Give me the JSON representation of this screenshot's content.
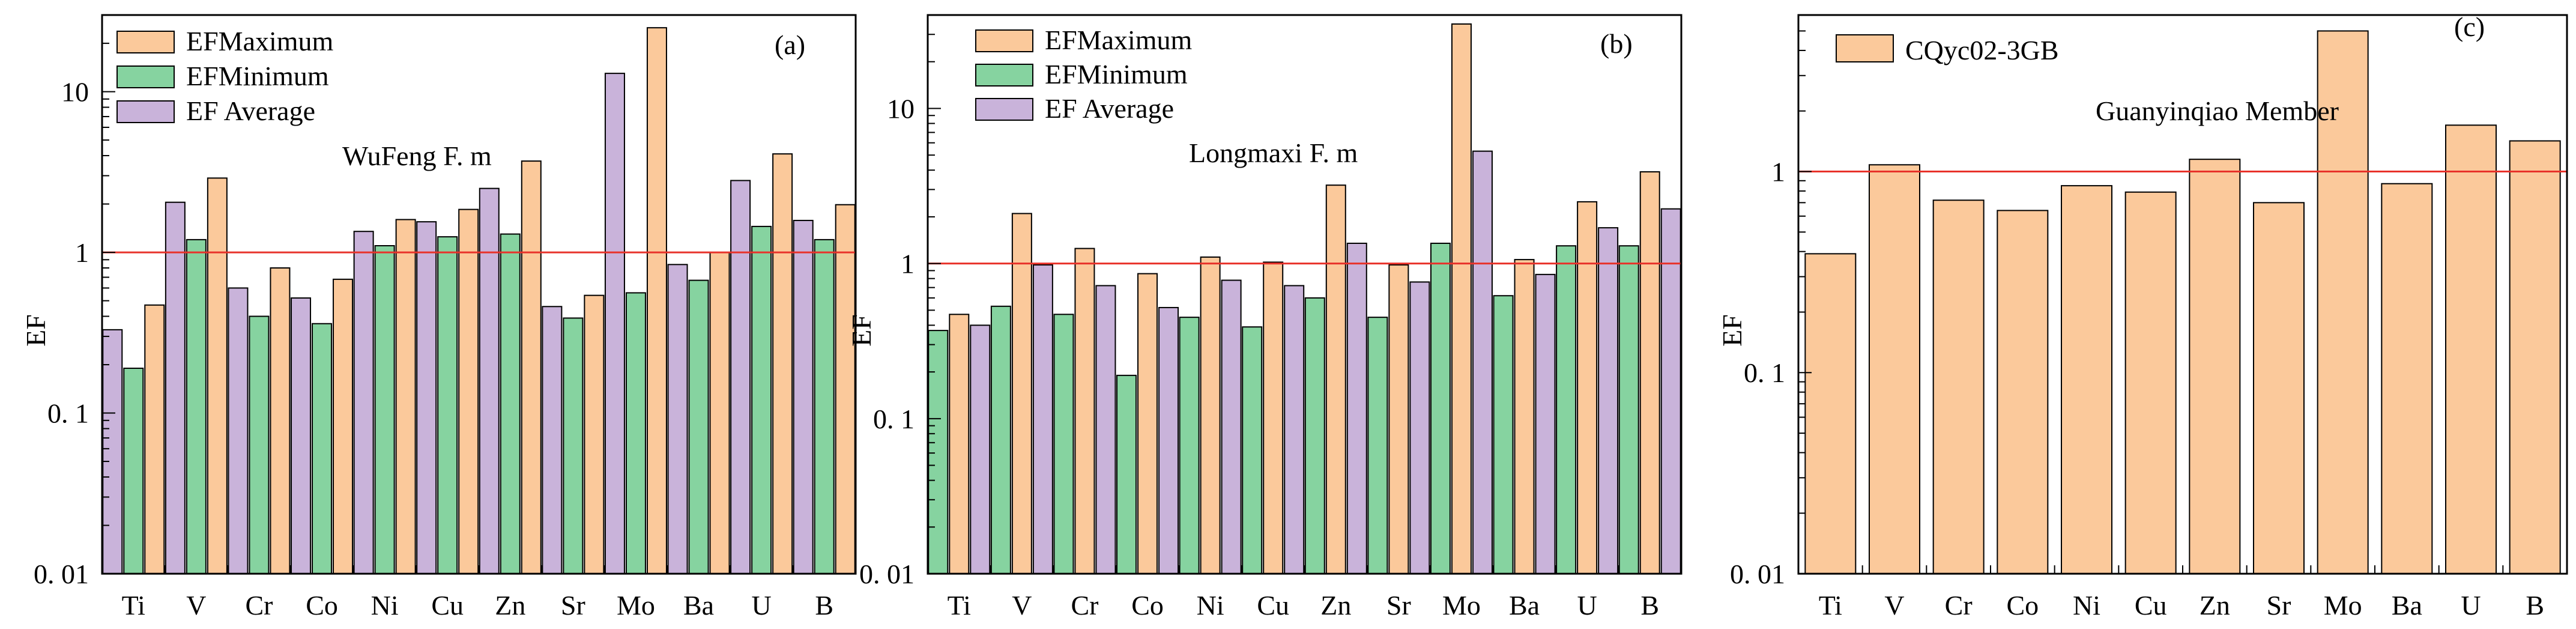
{
  "figure": {
    "y_axis_label": "EF"
  },
  "colors": {
    "max": "#FBC99B",
    "min": "#86D3A0",
    "avg": "#C9B3DA",
    "reference_line": "#E8322A",
    "bar_stroke": "#000000"
  },
  "chart_data": [
    {
      "type": "bar",
      "panel_label": "(a)",
      "annotation": "WuFeng F. m",
      "ylabel": "EF",
      "yscale": "log",
      "ylim": [
        0.01,
        30
      ],
      "yticks": [
        0.01,
        0.1,
        1,
        10
      ],
      "ytick_labels": [
        "0. 01",
        "0. 1",
        "1",
        "10"
      ],
      "reference_line": 1,
      "categories": [
        "Ti",
        "V",
        "Cr",
        "Co",
        "Ni",
        "Cu",
        "Zn",
        "Sr",
        "Mo",
        "Ba",
        "U",
        "B"
      ],
      "legend": [
        "EFMaximum",
        "EFMinimum",
        "EF Average"
      ],
      "series": [
        {
          "name": "EF Average",
          "color": "avg",
          "values": [
            0.33,
            2.05,
            0.6,
            0.52,
            1.35,
            1.55,
            2.5,
            0.46,
            13.0,
            0.84,
            2.8,
            1.58
          ]
        },
        {
          "name": "EFMinimum",
          "color": "min",
          "values": [
            0.19,
            1.2,
            0.4,
            0.36,
            1.1,
            1.25,
            1.3,
            0.39,
            0.56,
            0.67,
            1.45,
            1.2
          ]
        },
        {
          "name": "EFMaximum",
          "color": "max",
          "values": [
            0.47,
            2.9,
            0.8,
            0.68,
            1.6,
            1.85,
            3.7,
            0.54,
            25.0,
            1.0,
            4.1,
            1.98
          ]
        }
      ]
    },
    {
      "type": "bar",
      "panel_label": "(b)",
      "annotation": "Longmaxi F. m",
      "ylabel": "EF",
      "yscale": "log",
      "ylim": [
        0.01,
        40
      ],
      "yticks": [
        0.01,
        0.1,
        1,
        10
      ],
      "ytick_labels": [
        "0. 01",
        "0. 1",
        "1",
        "10"
      ],
      "reference_line": 1,
      "categories": [
        "Ti",
        "V",
        "Cr",
        "Co",
        "Ni",
        "Cu",
        "Zn",
        "Sr",
        "Mo",
        "Ba",
        "U",
        "B"
      ],
      "legend": [
        "EFMaximum",
        "EFMinimum",
        "EF Average"
      ],
      "series": [
        {
          "name": "EFMinimum",
          "color": "min",
          "values": [
            0.37,
            0.53,
            0.47,
            0.19,
            0.45,
            0.39,
            0.6,
            0.45,
            1.35,
            0.62,
            1.3,
            1.3
          ]
        },
        {
          "name": "EFMaximum",
          "color": "max",
          "values": [
            0.47,
            2.1,
            1.25,
            0.86,
            1.1,
            1.02,
            3.2,
            0.98,
            35.0,
            1.06,
            2.5,
            3.9
          ]
        },
        {
          "name": "EF Average",
          "color": "avg",
          "values": [
            0.4,
            0.98,
            0.72,
            0.52,
            0.78,
            0.72,
            1.35,
            0.76,
            5.3,
            0.85,
            1.7,
            2.25
          ]
        }
      ]
    },
    {
      "type": "bar",
      "panel_label": "(c)",
      "annotation": "Guanyinqiao Member",
      "ylabel": "EF",
      "yscale": "log",
      "ylim": [
        0.01,
        6
      ],
      "yticks": [
        0.01,
        0.1,
        1
      ],
      "ytick_labels": [
        "0. 01",
        "0. 1",
        "1"
      ],
      "reference_line": 1,
      "categories": [
        "Ti",
        "V",
        "Cr",
        "Co",
        "Ni",
        "Cu",
        "Zn",
        "Sr",
        "Mo",
        "Ba",
        "U",
        "B"
      ],
      "legend": [
        "CQyc02-3GB"
      ],
      "series": [
        {
          "name": "CQyc02-3GB",
          "color": "max",
          "values": [
            0.39,
            1.08,
            0.72,
            0.64,
            0.85,
            0.79,
            1.15,
            0.7,
            5.0,
            0.87,
            1.7,
            1.42
          ]
        }
      ]
    }
  ]
}
